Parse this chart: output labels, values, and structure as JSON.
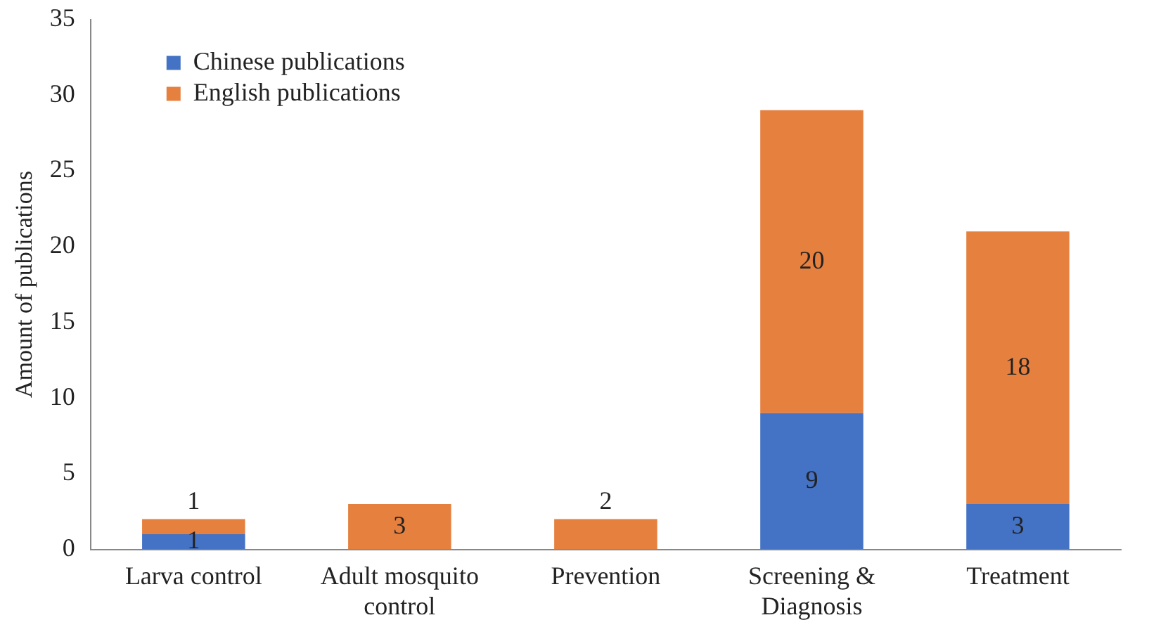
{
  "chart_data": {
    "type": "bar",
    "stacked": true,
    "ylabel": "Amount of publications",
    "categories": [
      "Larva control",
      "Adult mosquito control",
      "Prevention",
      "Screening & Diagnosis",
      "Treatment"
    ],
    "series": [
      {
        "name": "Chinese publications",
        "color": "#4472c4",
        "values": [
          1,
          0,
          0,
          9,
          3
        ],
        "value_labels": [
          "1",
          null,
          null,
          "9",
          "3"
        ]
      },
      {
        "name": "English publications",
        "color": "#e6803f",
        "values": [
          1,
          3,
          2,
          20,
          18
        ],
        "value_labels": [
          "1",
          "3",
          "2",
          "20",
          "18"
        ]
      }
    ],
    "ylim": [
      0,
      35
    ],
    "yticks": [
      0,
      5,
      10,
      15,
      20,
      25,
      30,
      35
    ],
    "grid": false,
    "legend": "top left"
  }
}
